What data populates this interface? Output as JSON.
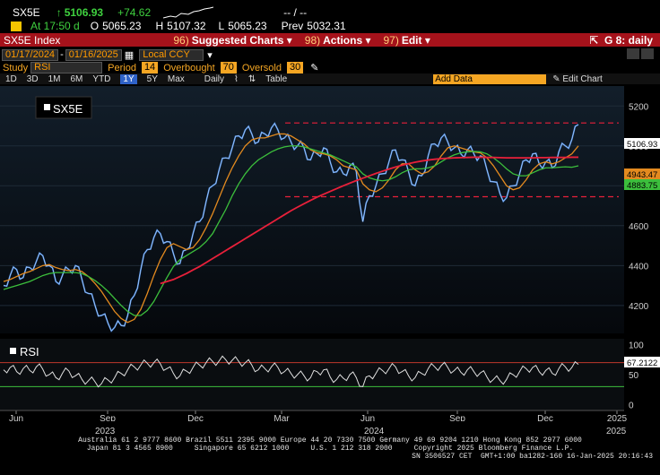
{
  "quote": {
    "ticker": "SX5E",
    "last": "5106.93",
    "change": "+74.62",
    "range": "-- / --",
    "at_label": "At 17:50 d",
    "open_label": "O",
    "open": "5065.23",
    "high_label": "H",
    "high": "5107.32",
    "low_label": "L",
    "low": "5065.23",
    "prev_label": "Prev",
    "prev": "5032.31"
  },
  "toolbar": {
    "security": "SX5E Index",
    "suggested_charts": "Suggested Charts",
    "suggested_code": "96)",
    "actions": "Actions",
    "actions_code": "98)",
    "edit": "Edit",
    "edit_code": "97)",
    "layout": "G 8: daily"
  },
  "datebar": {
    "start": "01/17/2024",
    "end": "01/16/2025",
    "currency": "Local CCY"
  },
  "study": {
    "study_label": "Study",
    "study_value": "RSI",
    "period_label": "Period",
    "period_value": "14",
    "overbought_label": "Overbought",
    "overbought_value": "70",
    "oversold_label": "Oversold",
    "oversold_value": "30"
  },
  "periods": {
    "items": [
      "1D",
      "3D",
      "1M",
      "6M",
      "YTD",
      "1Y",
      "5Y",
      "Max"
    ],
    "selected": "1Y",
    "frequency": "Daily",
    "table": "Table",
    "add_data": "Add Data",
    "edit_chart": "Edit Chart"
  },
  "legend": {
    "main": "SX5E",
    "rsi": "RSI"
  },
  "colors": {
    "price": "#4d8fe8",
    "ma_short": "#e38a1f",
    "ma_mid": "#3cbf3c",
    "ma_long": "#e8203a",
    "resistance": "#e8203a",
    "rsi": "#e0e0e0",
    "accent": "#ff9a00",
    "redbar": "#a5121b"
  },
  "chart_data": [
    {
      "type": "line",
      "title": "SX5E",
      "ylim": [
        4060,
        5300
      ],
      "yticks": [
        4200,
        4400,
        4600,
        4800,
        5000,
        5200
      ],
      "xticks": [
        "Jun",
        "Sep",
        "Dec",
        "Mar",
        "Jun",
        "Sep",
        "Dec",
        "2025"
      ],
      "years": [
        "2023",
        "2024",
        "2025"
      ],
      "series": [
        {
          "name": "SX5E",
          "values": [
            4300,
            4350,
            4380,
            4340,
            4390,
            4420,
            4450,
            4400,
            4320,
            4350,
            4380,
            4400,
            4330,
            4260,
            4200,
            4150,
            4110,
            4090,
            4100,
            4150,
            4250,
            4380,
            4480,
            4540,
            4560,
            4520,
            4460,
            4410,
            4480,
            4560,
            4620,
            4720,
            4800,
            4880,
            4940,
            4990,
            5050,
            5080,
            5060,
            5020,
            5060,
            5090,
            5080,
            5040,
            5020,
            5000,
            4990,
            4930,
            4960,
            4990,
            4920,
            4870,
            4860,
            4900,
            4870,
            4620,
            4750,
            4800,
            4860,
            4920,
            4980,
            4930,
            4870,
            4800,
            4850,
            4950,
            5010,
            5040,
            5020,
            4990,
            4960,
            4980,
            4960,
            4950,
            4880,
            4820,
            4760,
            4740,
            4800,
            4860,
            4930,
            4960,
            4910,
            4920,
            4890,
            4970,
            5000,
            5032,
            5107
          ]
        },
        {
          "name": "MA short",
          "values": [
            4320,
            4330,
            4345,
            4360,
            4370,
            4385,
            4400,
            4405,
            4390,
            4380,
            4375,
            4380,
            4370,
            4345,
            4310,
            4270,
            4220,
            4170,
            4135,
            4115,
            4130,
            4180,
            4260,
            4350,
            4430,
            4490,
            4510,
            4495,
            4480,
            4490,
            4530,
            4590,
            4660,
            4740,
            4820,
            4890,
            4950,
            5000,
            5030,
            5040,
            5040,
            5050,
            5060,
            5060,
            5050,
            5030,
            5010,
            4980,
            4965,
            4960,
            4950,
            4930,
            4900,
            4890,
            4880,
            4810,
            4780,
            4770,
            4790,
            4830,
            4880,
            4910,
            4910,
            4880,
            4860,
            4870,
            4900,
            4950,
            4990,
            5000,
            4990,
            4980,
            4970,
            4965,
            4940,
            4900,
            4850,
            4800,
            4780,
            4790,
            4830,
            4880,
            4910,
            4920,
            4910,
            4920,
            4940,
            4960,
            5000
          ]
        },
        {
          "name": "MA mid",
          "values": [
            4280,
            4290,
            4300,
            4310,
            4320,
            4335,
            4350,
            4360,
            4365,
            4365,
            4365,
            4365,
            4360,
            4345,
            4325,
            4300,
            4270,
            4235,
            4200,
            4170,
            4150,
            4150,
            4175,
            4220,
            4280,
            4340,
            4395,
            4430,
            4450,
            4470,
            4490,
            4520,
            4560,
            4620,
            4680,
            4750,
            4810,
            4860,
            4900,
            4930,
            4950,
            4970,
            4985,
            4995,
            5000,
            5000,
            4995,
            4985,
            4975,
            4965,
            4955,
            4940,
            4925,
            4910,
            4895,
            4860,
            4840,
            4830,
            4825,
            4830,
            4845,
            4865,
            4880,
            4885,
            4885,
            4890,
            4900,
            4920,
            4940,
            4955,
            4965,
            4970,
            4972,
            4970,
            4960,
            4940,
            4915,
            4885,
            4860,
            4850,
            4850,
            4865,
            4880,
            4890,
            4890,
            4893,
            4895,
            4893,
            4900
          ]
        },
        {
          "name": "MA long",
          "x_start": 24,
          "values": [
            4310,
            4320,
            4330,
            4345,
            4360,
            4378,
            4395,
            4415,
            4435,
            4455,
            4475,
            4495,
            4515,
            4535,
            4555,
            4575,
            4595,
            4615,
            4635,
            4655,
            4675,
            4693,
            4710,
            4727,
            4743,
            4758,
            4772,
            4786,
            4800,
            4813,
            4826,
            4838,
            4850,
            4862,
            4873,
            4884,
            4894,
            4903,
            4911,
            4918,
            4924,
            4929,
            4933,
            4936,
            4938,
            4940,
            4941,
            4942,
            4943,
            4943,
            4942,
            4942,
            4941,
            4940,
            4940,
            4940,
            4940,
            4940,
            4941,
            4941,
            4942,
            4942,
            4942,
            4943,
            4943
          ]
        }
      ],
      "reference_lines": [
        5115,
        4745
      ],
      "value_labels": [
        "5106.93",
        "4943.47",
        "4883.75"
      ]
    },
    {
      "type": "line",
      "title": "RSI",
      "ylim": [
        -10,
        110
      ],
      "yticks": [
        0,
        50,
        100
      ],
      "overbought": 70,
      "oversold": 30,
      "series": [
        {
          "name": "RSI",
          "values": [
            58,
            62,
            55,
            60,
            57,
            63,
            59,
            50,
            45,
            52,
            56,
            48,
            42,
            40,
            38,
            35,
            41,
            45,
            52,
            58,
            63,
            66,
            69,
            70,
            68,
            60,
            52,
            48,
            56,
            62,
            66,
            70,
            72,
            73,
            75,
            74,
            72,
            70,
            66,
            58,
            60,
            63,
            62,
            55,
            52,
            50,
            48,
            45,
            55,
            58,
            46,
            42,
            44,
            50,
            45,
            30,
            48,
            52,
            57,
            60,
            63,
            55,
            48,
            45,
            52,
            60,
            63,
            65,
            62,
            57,
            54,
            58,
            55,
            53,
            46,
            42,
            40,
            42,
            50,
            55,
            60,
            62,
            55,
            57,
            52,
            60,
            63,
            62,
            67
          ]
        }
      ],
      "value_labels": [
        "67.2122"
      ]
    }
  ]
}
